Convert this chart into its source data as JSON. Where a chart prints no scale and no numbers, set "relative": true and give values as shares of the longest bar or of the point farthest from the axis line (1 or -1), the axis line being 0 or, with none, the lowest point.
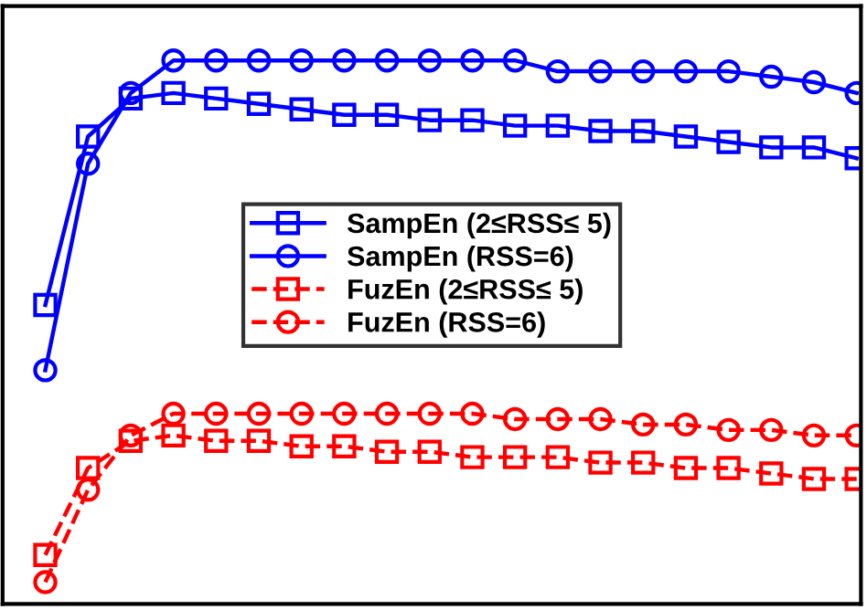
{
  "chart_data": {
    "type": "line",
    "relative": true,
    "legend": "center",
    "categories": [
      null,
      null,
      null,
      null,
      null,
      null,
      null,
      null,
      null,
      null,
      null,
      null,
      null,
      null,
      null,
      null,
      null,
      null,
      null,
      null
    ],
    "series": [
      {
        "name": "SampEn (2≤RSS≤ 5)",
        "color": "#0000ff",
        "marker": "square",
        "line_style": "solid",
        "values": [
          0.55,
          0.86,
          0.93,
          0.94,
          0.93,
          0.92,
          0.91,
          0.9,
          0.9,
          0.89,
          0.89,
          0.88,
          0.88,
          0.87,
          0.87,
          0.86,
          0.85,
          0.84,
          0.84,
          0.82
        ]
      },
      {
        "name": "SampEn (RSS=6)",
        "color": "#0000ff",
        "marker": "circle",
        "line_style": "solid",
        "values": [
          0.43,
          0.81,
          0.94,
          1.0,
          1.0,
          1.0,
          1.0,
          1.0,
          1.0,
          1.0,
          1.0,
          1.0,
          0.98,
          0.98,
          0.98,
          0.98,
          0.98,
          0.97,
          0.96,
          0.94
        ]
      },
      {
        "name": "FuzEn (2≤RSS≤ 5)",
        "color": "#ff0000",
        "marker": "square",
        "line_style": "dashed",
        "values": [
          0.09,
          0.25,
          0.3,
          0.31,
          0.3,
          0.3,
          0.29,
          0.29,
          0.28,
          0.28,
          0.27,
          0.27,
          0.27,
          0.26,
          0.26,
          0.25,
          0.25,
          0.24,
          0.23,
          0.23
        ]
      },
      {
        "name": "FuzEn (RSS=6)",
        "color": "#ff0000",
        "marker": "circle",
        "line_style": "dashed",
        "values": [
          0.04,
          0.21,
          0.31,
          0.35,
          0.35,
          0.35,
          0.35,
          0.35,
          0.35,
          0.35,
          0.35,
          0.34,
          0.34,
          0.34,
          0.33,
          0.33,
          0.32,
          0.32,
          0.31,
          0.31
        ]
      }
    ]
  }
}
